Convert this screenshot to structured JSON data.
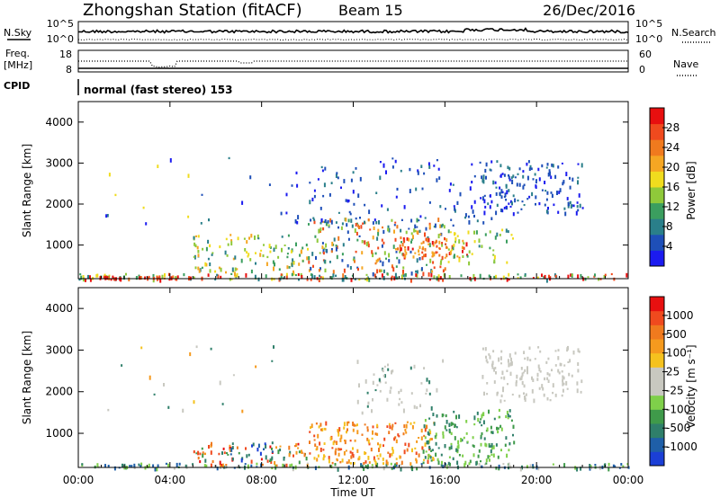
{
  "header": {
    "station": "Zhongshan Station (fitACF)",
    "beam": "Beam 15",
    "date": "26/Dec/2016"
  },
  "top_panels": {
    "nsky_label": "N.Sky",
    "nsky_ticks": [
      "10^5",
      "10^0"
    ],
    "nsearch_label": "N.Search",
    "nsearch_ticks": [
      "10^5",
      "10^0"
    ],
    "freq_label": "Freq.",
    "freq_unit": "[MHz]",
    "freq_ticks": [
      "18",
      "8"
    ],
    "nave_label": "Nave",
    "nave_ticks": [
      "60",
      "0"
    ],
    "cpid_label": "CPID",
    "cpid_text": "normal (fast stereo) 153"
  },
  "chart_data": [
    {
      "type": "heatmap",
      "name": "power",
      "ylabel": "Slant Range [km]",
      "xlabel": "",
      "yticks": [
        "1000",
        "2000",
        "3000",
        "4000"
      ],
      "ylim": [
        180,
        4500
      ],
      "xlim_hours": [
        0,
        24
      ],
      "colorbar": {
        "label": "Power [dB]",
        "ticks": [
          "4",
          "8",
          "12",
          "16",
          "20",
          "24",
          "28"
        ],
        "colors": [
          "#1b1bf0",
          "#1e4fb8",
          "#2a7f8a",
          "#3b9e5f",
          "#8fc93a",
          "#f0dc1e",
          "#f5a623",
          "#f07a1e",
          "#f04a1e",
          "#e80f0f"
        ]
      }
    },
    {
      "type": "heatmap",
      "name": "velocity",
      "ylabel": "Slant Range [km]",
      "xlabel": "Time UT",
      "xticks": [
        "00:00",
        "04:00",
        "08:00",
        "12:00",
        "16:00",
        "20:00",
        "00:00"
      ],
      "yticks": [
        "1000",
        "2000",
        "3000",
        "4000"
      ],
      "ylim": [
        180,
        4500
      ],
      "xlim_hours": [
        0,
        24
      ],
      "colorbar": {
        "label": "Velocity [m s⁻¹]",
        "ticks": [
          "1000",
          "500",
          "100",
          "25",
          "-25",
          "-100",
          "-500",
          "-1000"
        ],
        "colors": [
          "#1b3fd6",
          "#1f5fa8",
          "#2f7f6a",
          "#3f9a4a",
          "#7fd04a",
          "#c8c8c0",
          "#c8c8c0",
          "#f5c21e",
          "#f59a1e",
          "#f07a1e",
          "#f04a1e",
          "#e81010"
        ]
      }
    }
  ]
}
